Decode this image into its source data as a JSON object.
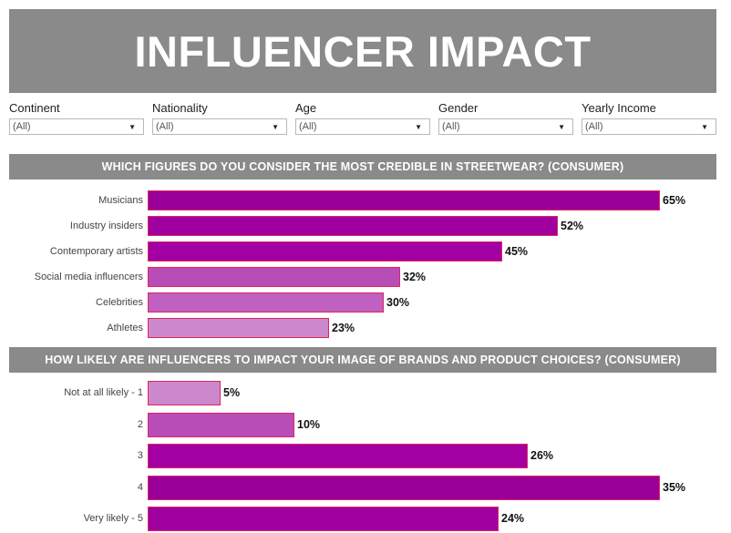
{
  "title": "INFLUENCER IMPACT",
  "filters": [
    {
      "label": "Continent",
      "value": "(All)"
    },
    {
      "label": "Nationality",
      "value": "(All)"
    },
    {
      "label": "Age",
      "value": "(All)"
    },
    {
      "label": "Gender",
      "value": "(All)"
    },
    {
      "label": "Yearly Income",
      "value": "(All)"
    }
  ],
  "chart_data": [
    {
      "type": "bar",
      "orientation": "horizontal",
      "title": "WHICH FIGURES DO YOU CONSIDER THE MOST CREDIBLE IN STREETWEAR? (CONSUMER)",
      "categories": [
        "Musicians",
        "Industry insiders",
        "Contemporary artists",
        "Social media influencers",
        "Celebrities",
        "Athletes"
      ],
      "values": [
        65,
        52,
        45,
        32,
        30,
        23
      ],
      "labels": [
        "65%",
        "52%",
        "45%",
        "32%",
        "30%",
        "23%"
      ],
      "colors": [
        "#990099",
        "#a000a0",
        "#a300a3",
        "#b84db8",
        "#c060c0",
        "#cc88cc"
      ],
      "xlim": [
        0,
        65
      ]
    },
    {
      "type": "bar",
      "orientation": "horizontal",
      "title": "HOW LIKELY ARE INFLUENCERS TO IMPACT YOUR IMAGE OF BRANDS AND PRODUCT CHOICES? (CONSUMER)",
      "categories": [
        "Not at all likely - 1",
        "2",
        "3",
        "4",
        "Very likely - 5"
      ],
      "values": [
        5,
        10,
        26,
        35,
        24
      ],
      "labels": [
        "5%",
        "10%",
        "26%",
        "35%",
        "24%"
      ],
      "colors": [
        "#cc88cc",
        "#b84db8",
        "#a300a3",
        "#990099",
        "#a000a0"
      ],
      "xlim": [
        0,
        35
      ]
    }
  ]
}
